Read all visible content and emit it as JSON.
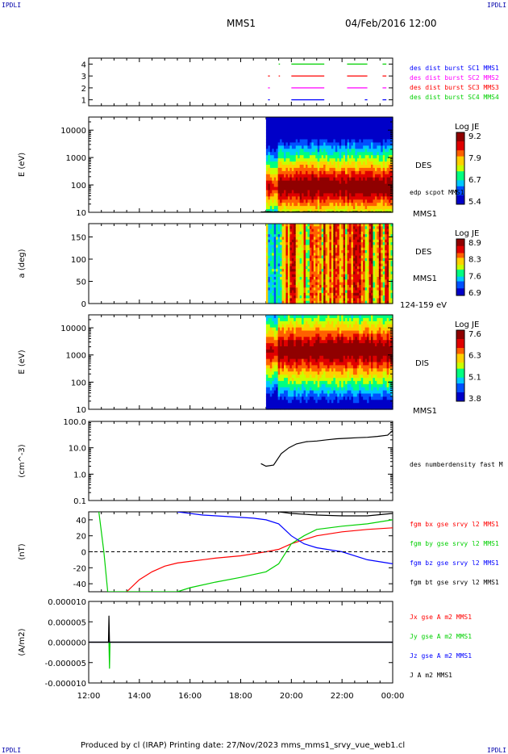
{
  "header": {
    "corner_left": "IPDLI",
    "corner_right": "IPDLI",
    "mission": "MMS1",
    "datetime": "04/Feb/2016 12:00"
  },
  "footer": {
    "text": "Produced by cl (IRAP)   Printing date: 27/Nov/2023   mms_mms1_srvy_vue_web1.cl",
    "corner_left": "IPDLI",
    "corner_right": "IPDLI"
  },
  "colors": {
    "blue": "#0000ff",
    "magenta": "#ff00ff",
    "red": "#ff0000",
    "green": "#00d000",
    "black": "#000000",
    "cmap": [
      "#0000c8",
      "#0050ff",
      "#00c8ff",
      "#00ff80",
      "#c8ff00",
      "#ffd000",
      "#ff6000",
      "#e00000",
      "#900000"
    ]
  },
  "chart_data": [
    {
      "id": "burst",
      "type": "scatter",
      "x_axis": {
        "range_hours": [
          12,
          24
        ],
        "ticks": [
          "12:00",
          "14:00",
          "16:00",
          "18:00",
          "20:00",
          "22:00",
          "00:00"
        ]
      },
      "ylim": [
        0.5,
        4.5
      ],
      "yticks": [
        "1",
        "2",
        "3",
        "4"
      ],
      "series": [
        {
          "name": "des dist burst SC1 MMS1",
          "level": 1,
          "color": "#0000ff",
          "intervals": [
            [
              19.08,
              19.15
            ],
            [
              20.0,
              21.3
            ],
            [
              22.9,
              23.0
            ],
            [
              23.6,
              23.75
            ]
          ]
        },
        {
          "name": "des dist burst SC2 MMS2",
          "level": 2,
          "color": "#ff00ff",
          "intervals": [
            [
              19.08,
              19.15
            ],
            [
              20.0,
              21.3
            ],
            [
              22.2,
              23.0
            ],
            [
              23.6,
              23.75
            ]
          ]
        },
        {
          "name": "des dist burst SC3 MMS3",
          "level": 3,
          "color": "#ff0000",
          "intervals": [
            [
              19.08,
              19.15
            ],
            [
              19.5,
              19.55
            ],
            [
              20.0,
              21.3
            ],
            [
              22.2,
              23.0
            ],
            [
              23.6,
              23.75
            ]
          ]
        },
        {
          "name": "des dist burst SC4 MMS4",
          "level": 4,
          "color": "#00d000",
          "intervals": [
            [
              19.5,
              19.55
            ],
            [
              20.0,
              21.3
            ],
            [
              22.2,
              23.0
            ],
            [
              23.6,
              23.75
            ]
          ]
        }
      ]
    },
    {
      "id": "des_energy",
      "type": "heatmap",
      "ylabel": "E (eV)",
      "yscale": "log",
      "ylim": [
        10,
        30000
      ],
      "yticks": [
        "10",
        "100",
        "1000",
        "10000"
      ],
      "data_start_hour": 19.0,
      "band_peak_eV": 80,
      "label": "DES",
      "sublabels": [
        "edp scpot MMS1",
        "MMS1"
      ],
      "colorbar": {
        "title": "Log JE",
        "ticks": [
          "9.2",
          "7.9",
          "6.7",
          "5.4"
        ]
      }
    },
    {
      "id": "des_pitch",
      "type": "heatmap",
      "ylabel": "a (deg)",
      "ylim": [
        0,
        180
      ],
      "yticks": [
        "0",
        "50",
        "100",
        "150"
      ],
      "data_start_hour": 19.0,
      "label": "DES",
      "sublabels": [
        "MMS1",
        "124-159 eV"
      ],
      "colorbar": {
        "title": "Log JE",
        "ticks": [
          "8.9",
          "8.3",
          "7.6",
          "6.9"
        ]
      }
    },
    {
      "id": "dis_energy",
      "type": "heatmap",
      "ylabel": "E (eV)",
      "yscale": "log",
      "ylim": [
        10,
        30000
      ],
      "yticks": [
        "10",
        "100",
        "1000",
        "10000"
      ],
      "data_start_hour": 19.0,
      "band_peak_eV": 1500,
      "label": "DIS",
      "sublabels": [
        "MMS1"
      ],
      "colorbar": {
        "title": "Log JE",
        "ticks": [
          "7.6",
          "6.3",
          "5.1",
          "3.8"
        ]
      }
    },
    {
      "id": "density",
      "type": "line",
      "ylabel": "(cm^-3)",
      "yscale": "log",
      "ylim": [
        0.1,
        100
      ],
      "yticks": [
        "0.1",
        "1.0",
        "10.0",
        "100.0"
      ],
      "series": [
        {
          "name": "des numberdensity fast M",
          "color": "#000000",
          "x": [
            18.8,
            19.0,
            19.3,
            19.6,
            19.9,
            20.2,
            20.6,
            21.0,
            21.4,
            21.8,
            22.2,
            22.6,
            23.0,
            23.4,
            23.8,
            24.0
          ],
          "y": [
            2.5,
            2.0,
            2.2,
            6.0,
            10.0,
            14.0,
            17.0,
            18.0,
            20.0,
            22.0,
            23.0,
            24.0,
            25.0,
            27.0,
            30.0,
            45.0
          ]
        }
      ]
    },
    {
      "id": "bfield",
      "type": "line",
      "ylabel": "(nT)",
      "ylim": [
        -50,
        50
      ],
      "yticks": [
        "-40",
        "-20",
        "0",
        "20",
        "40"
      ],
      "series": [
        {
          "name": "fgm bx gse srvy l2 MMS1",
          "color": "#ff0000",
          "x": [
            13.5,
            14.0,
            14.5,
            15.0,
            15.5,
            16.0,
            17.0,
            18.0,
            19.0,
            19.5,
            20.0,
            20.5,
            21.0,
            22.0,
            23.0,
            24.0
          ],
          "y": [
            -50,
            -35,
            -25,
            -18,
            -14,
            -12,
            -8,
            -5,
            0,
            3,
            10,
            15,
            20,
            25,
            28,
            30
          ]
        },
        {
          "name": "fgm by gse srvy l2 MMS1",
          "color": "#00d000",
          "x": [
            12.4,
            12.6,
            12.75,
            15.5,
            16.0,
            17.0,
            18.0,
            19.0,
            19.5,
            20.0,
            20.5,
            21.0,
            22.0,
            23.0,
            24.0
          ],
          "y": [
            50,
            0,
            -50,
            -50,
            -45,
            -38,
            -32,
            -25,
            -15,
            10,
            20,
            28,
            32,
            35,
            40
          ]
        },
        {
          "name": "fgm bz gse srvy l2 MMS1",
          "color": "#0000ff",
          "x": [
            15.5,
            16.5,
            17.5,
            18.5,
            19.0,
            19.5,
            20.0,
            20.5,
            21.0,
            22.0,
            23.0,
            24.0
          ],
          "y": [
            50,
            46,
            44,
            42,
            40,
            35,
            20,
            10,
            5,
            0,
            -10,
            -15
          ]
        },
        {
          "name": "fgm bt gse srvy l2 MMS1",
          "color": "#000000",
          "x": [
            19.5,
            20.0,
            21.0,
            22.0,
            23.0,
            24.0
          ],
          "y": [
            50,
            48,
            46,
            45,
            45,
            48
          ]
        }
      ]
    },
    {
      "id": "current",
      "type": "line",
      "ylabel": "(A/m2)",
      "ylim": [
        -1e-05,
        1e-05
      ],
      "yticks": [
        "-0.000010",
        "-0.000005",
        "0.000000",
        "0.000005",
        "0.000010"
      ],
      "series": [
        {
          "name": "Jx gse A m2 MMS1",
          "color": "#ff0000",
          "x": [
            12.0,
            24.0
          ],
          "y": [
            0,
            0
          ]
        },
        {
          "name": "Jy gse A m2 MMS1",
          "color": "#00d000",
          "x": [
            12.0,
            12.8,
            12.82,
            12.84,
            24.0
          ],
          "y": [
            0,
            0,
            -6.5e-06,
            0,
            0
          ]
        },
        {
          "name": "Jz gse A m2 MMS1",
          "color": "#0000ff",
          "x": [
            12.0,
            24.0
          ],
          "y": [
            0,
            0
          ]
        },
        {
          "name": "J A m2 MMS1",
          "color": "#000000",
          "x": [
            12.0,
            12.78,
            12.8,
            12.82,
            24.0
          ],
          "y": [
            0,
            0,
            6.5e-06,
            0,
            0
          ]
        }
      ]
    }
  ]
}
